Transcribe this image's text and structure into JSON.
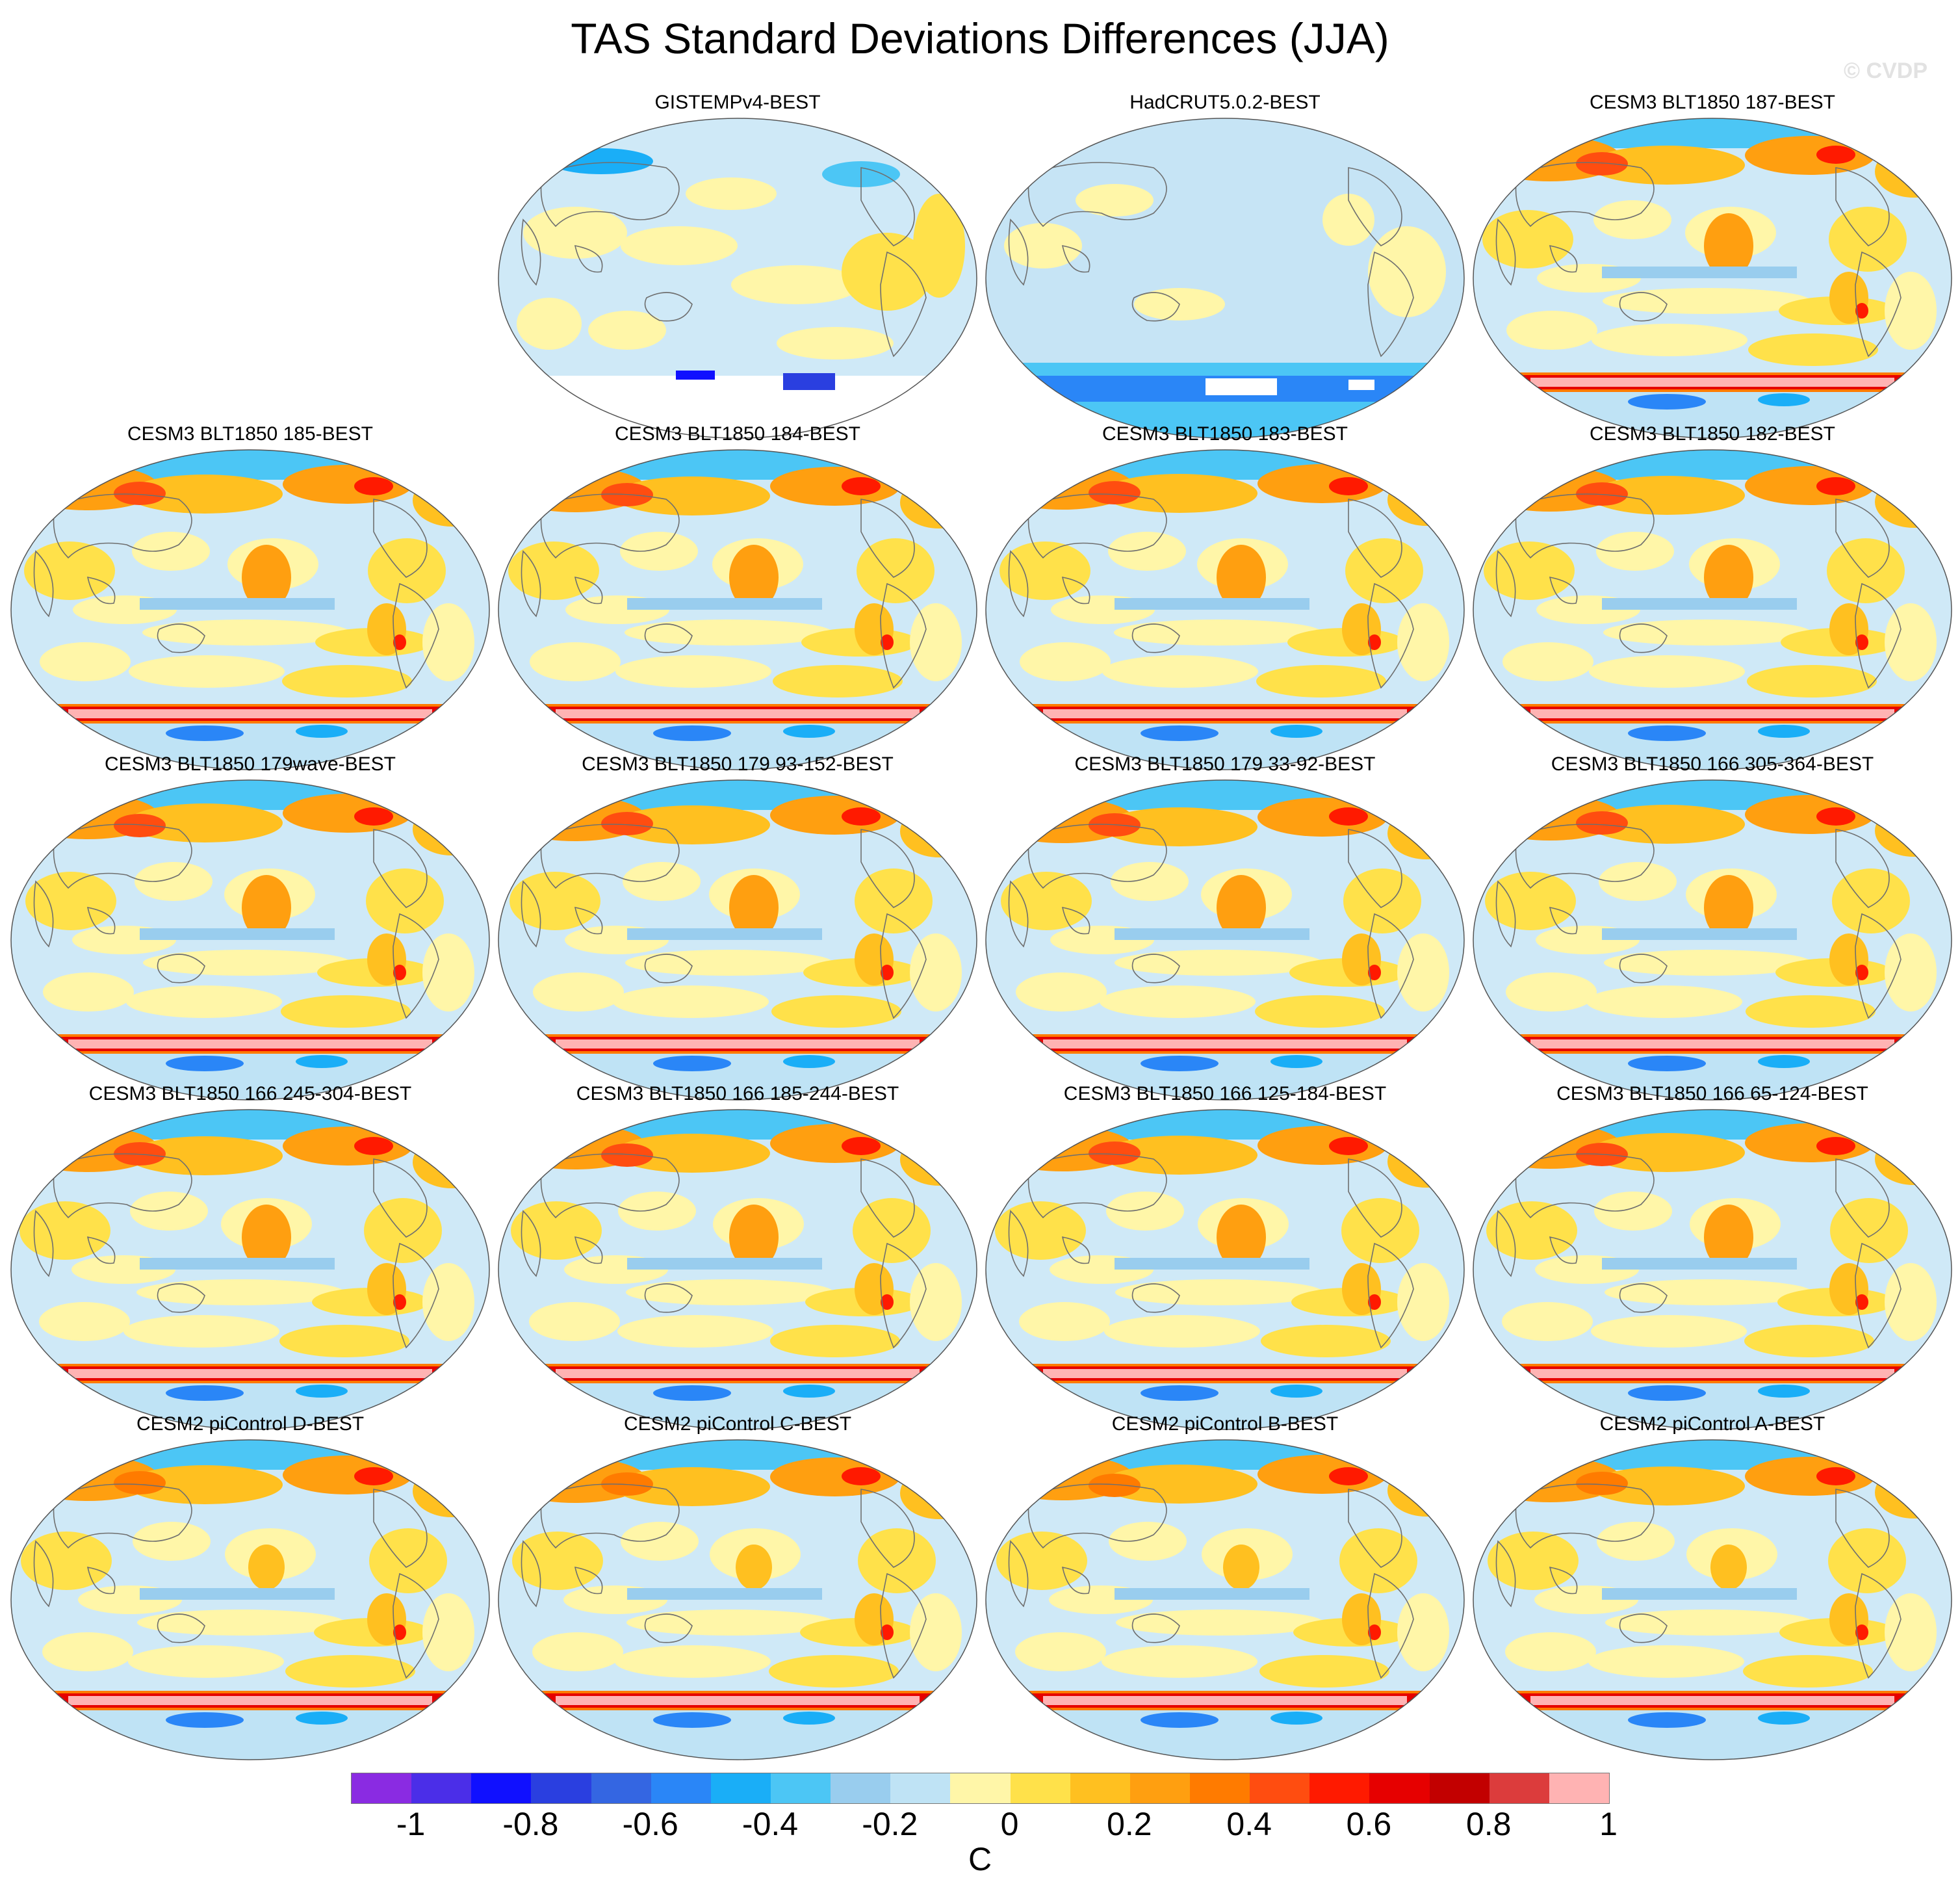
{
  "title": "TAS Standard Deviations Differences (JJA)",
  "watermark": "© CVDP",
  "panels": [
    {
      "title": "GISTEMPv4-BEST",
      "variant": "obs-gistemp"
    },
    {
      "title": "HadCRUT5.0.2-BEST",
      "variant": "obs-hadcrut"
    },
    {
      "title": "CESM3 BLT1850 187-BEST",
      "variant": "model"
    },
    {
      "title": "CESM3 BLT1850 185-BEST",
      "variant": "model"
    },
    {
      "title": "CESM3 BLT1850 184-BEST",
      "variant": "model"
    },
    {
      "title": "CESM3 BLT1850 183-BEST",
      "variant": "model"
    },
    {
      "title": "CESM3 BLT1850 182-BEST",
      "variant": "model"
    },
    {
      "title": "CESM3 BLT1850 179wave-BEST",
      "variant": "model"
    },
    {
      "title": "CESM3 BLT1850 179 93-152-BEST",
      "variant": "model"
    },
    {
      "title": "CESM3 BLT1850 179 33-92-BEST",
      "variant": "model"
    },
    {
      "title": "CESM3 BLT1850 166 305-364-BEST",
      "variant": "model"
    },
    {
      "title": "CESM3 BLT1850 166 245-304-BEST",
      "variant": "model"
    },
    {
      "title": "CESM3 BLT1850 166 185-244-BEST",
      "variant": "model"
    },
    {
      "title": "CESM3 BLT1850 166 125-184-BEST",
      "variant": "model"
    },
    {
      "title": "CESM3 BLT1850 166 65-124-BEST",
      "variant": "model"
    },
    {
      "title": "CESM2 piControl D-BEST",
      "variant": "pictl"
    },
    {
      "title": "CESM2 piControl C-BEST",
      "variant": "pictl"
    },
    {
      "title": "CESM2 piControl B-BEST",
      "variant": "pictl"
    },
    {
      "title": "CESM2 piControl A-BEST",
      "variant": "pictl"
    }
  ],
  "colorbar": {
    "units": "C",
    "colors": [
      "#8a2be2",
      "#4b2ee8",
      "#1010ff",
      "#2a3fe0",
      "#3466e2",
      "#2a86f7",
      "#1aaef7",
      "#4cc6f5",
      "#99cdee",
      "#bfe3f5",
      "#fff6a8",
      "#ffe14a",
      "#ffc020",
      "#ff9f10",
      "#ff7b00",
      "#ff4d10",
      "#ff1a00",
      "#e60000",
      "#c20000",
      "#dc3c3c",
      "#ffb3b3"
    ],
    "tick_labels": [
      "-1",
      "-0.8",
      "-0.6",
      "-0.4",
      "-0.2",
      "0",
      "0.2",
      "0.4",
      "0.6",
      "0.8",
      "1"
    ]
  }
}
